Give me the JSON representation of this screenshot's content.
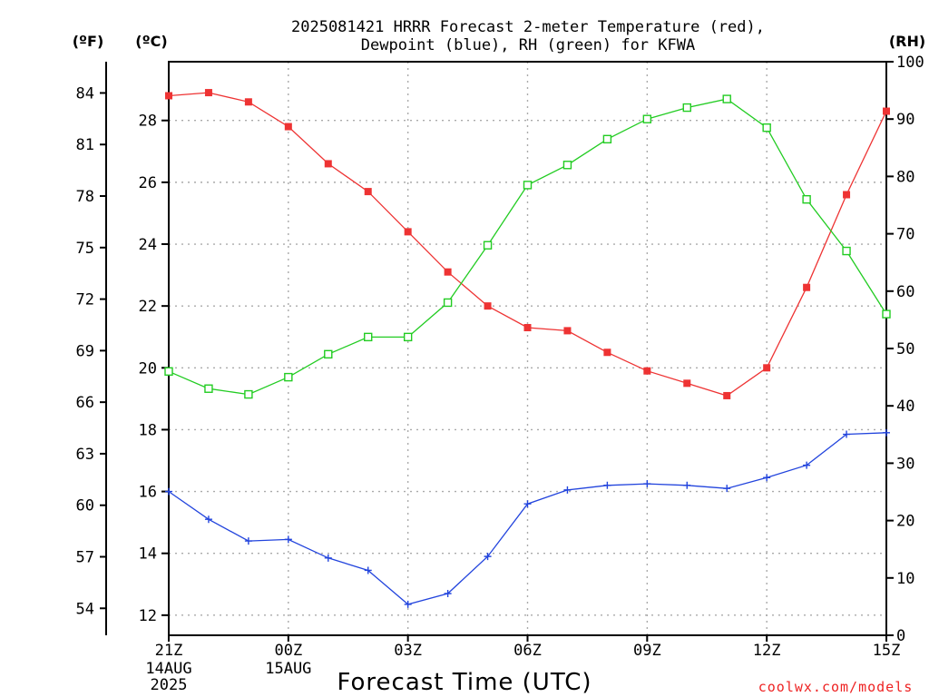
{
  "chart_data": {
    "type": "line",
    "title": [
      "2025081421 HRRR Forecast 2-meter Temperature (red),",
      "Dewpoint (blue), RH (green) for KFWA"
    ],
    "xlabel": "Forecast Time (UTC)",
    "credit": "coolwx.com/models",
    "units": {
      "fahrenheit": "(ºF)",
      "celsius": "(ºC)",
      "rh": "(RH)"
    },
    "x_hours": [
      0,
      1,
      2,
      3,
      4,
      5,
      6,
      7,
      8,
      9,
      10,
      11,
      12,
      13,
      14,
      15,
      16,
      17,
      18
    ],
    "xlim": [
      0,
      18
    ],
    "x_ticks": [
      {
        "hour": 0,
        "label": "21Z",
        "sub": [
          "14AUG",
          "2025"
        ]
      },
      {
        "hour": 3,
        "label": "00Z",
        "sub": [
          "15AUG"
        ]
      },
      {
        "hour": 6,
        "label": "03Z",
        "sub": []
      },
      {
        "hour": 9,
        "label": "06Z",
        "sub": []
      },
      {
        "hour": 12,
        "label": "09Z",
        "sub": []
      },
      {
        "hour": 15,
        "label": "12Z",
        "sub": []
      },
      {
        "hour": 18,
        "label": "15Z",
        "sub": []
      }
    ],
    "celsius_axis": {
      "lim": [
        11.35,
        29.9
      ],
      "ticks": [
        12,
        14,
        16,
        18,
        20,
        22,
        24,
        26,
        28
      ]
    },
    "fahrenheit_axis": {
      "ticks": [
        54,
        57,
        60,
        63,
        66,
        69,
        72,
        75,
        78,
        81,
        84
      ]
    },
    "rh_axis": {
      "lim": [
        0,
        100
      ],
      "ticks": [
        0,
        10,
        20,
        30,
        40,
        50,
        60,
        70,
        80,
        90,
        100
      ]
    },
    "series": [
      {
        "name": "Temperature",
        "axis": "celsius",
        "color": "#ee3333",
        "marker": "filled-square",
        "values": [
          28.8,
          28.9,
          28.6,
          27.8,
          26.6,
          25.7,
          24.4,
          23.1,
          22.0,
          21.3,
          21.2,
          20.5,
          19.9,
          19.5,
          19.1,
          20.0,
          22.6,
          25.6,
          28.3
        ]
      },
      {
        "name": "Dewpoint",
        "axis": "celsius",
        "color": "#2244dd",
        "marker": "plus",
        "values": [
          16.0,
          15.1,
          14.4,
          14.45,
          13.85,
          13.45,
          12.35,
          12.7,
          13.9,
          15.6,
          16.05,
          16.2,
          16.25,
          16.2,
          16.1,
          16.45,
          16.85,
          17.85,
          17.9
        ]
      },
      {
        "name": "RH",
        "axis": "rh",
        "color": "#22cc22",
        "marker": "open-square",
        "values": [
          46,
          43,
          42,
          45,
          49,
          52,
          52,
          58,
          68,
          78.5,
          82,
          86.5,
          90,
          92,
          93.5,
          88.5,
          76,
          67,
          56
        ]
      }
    ]
  }
}
